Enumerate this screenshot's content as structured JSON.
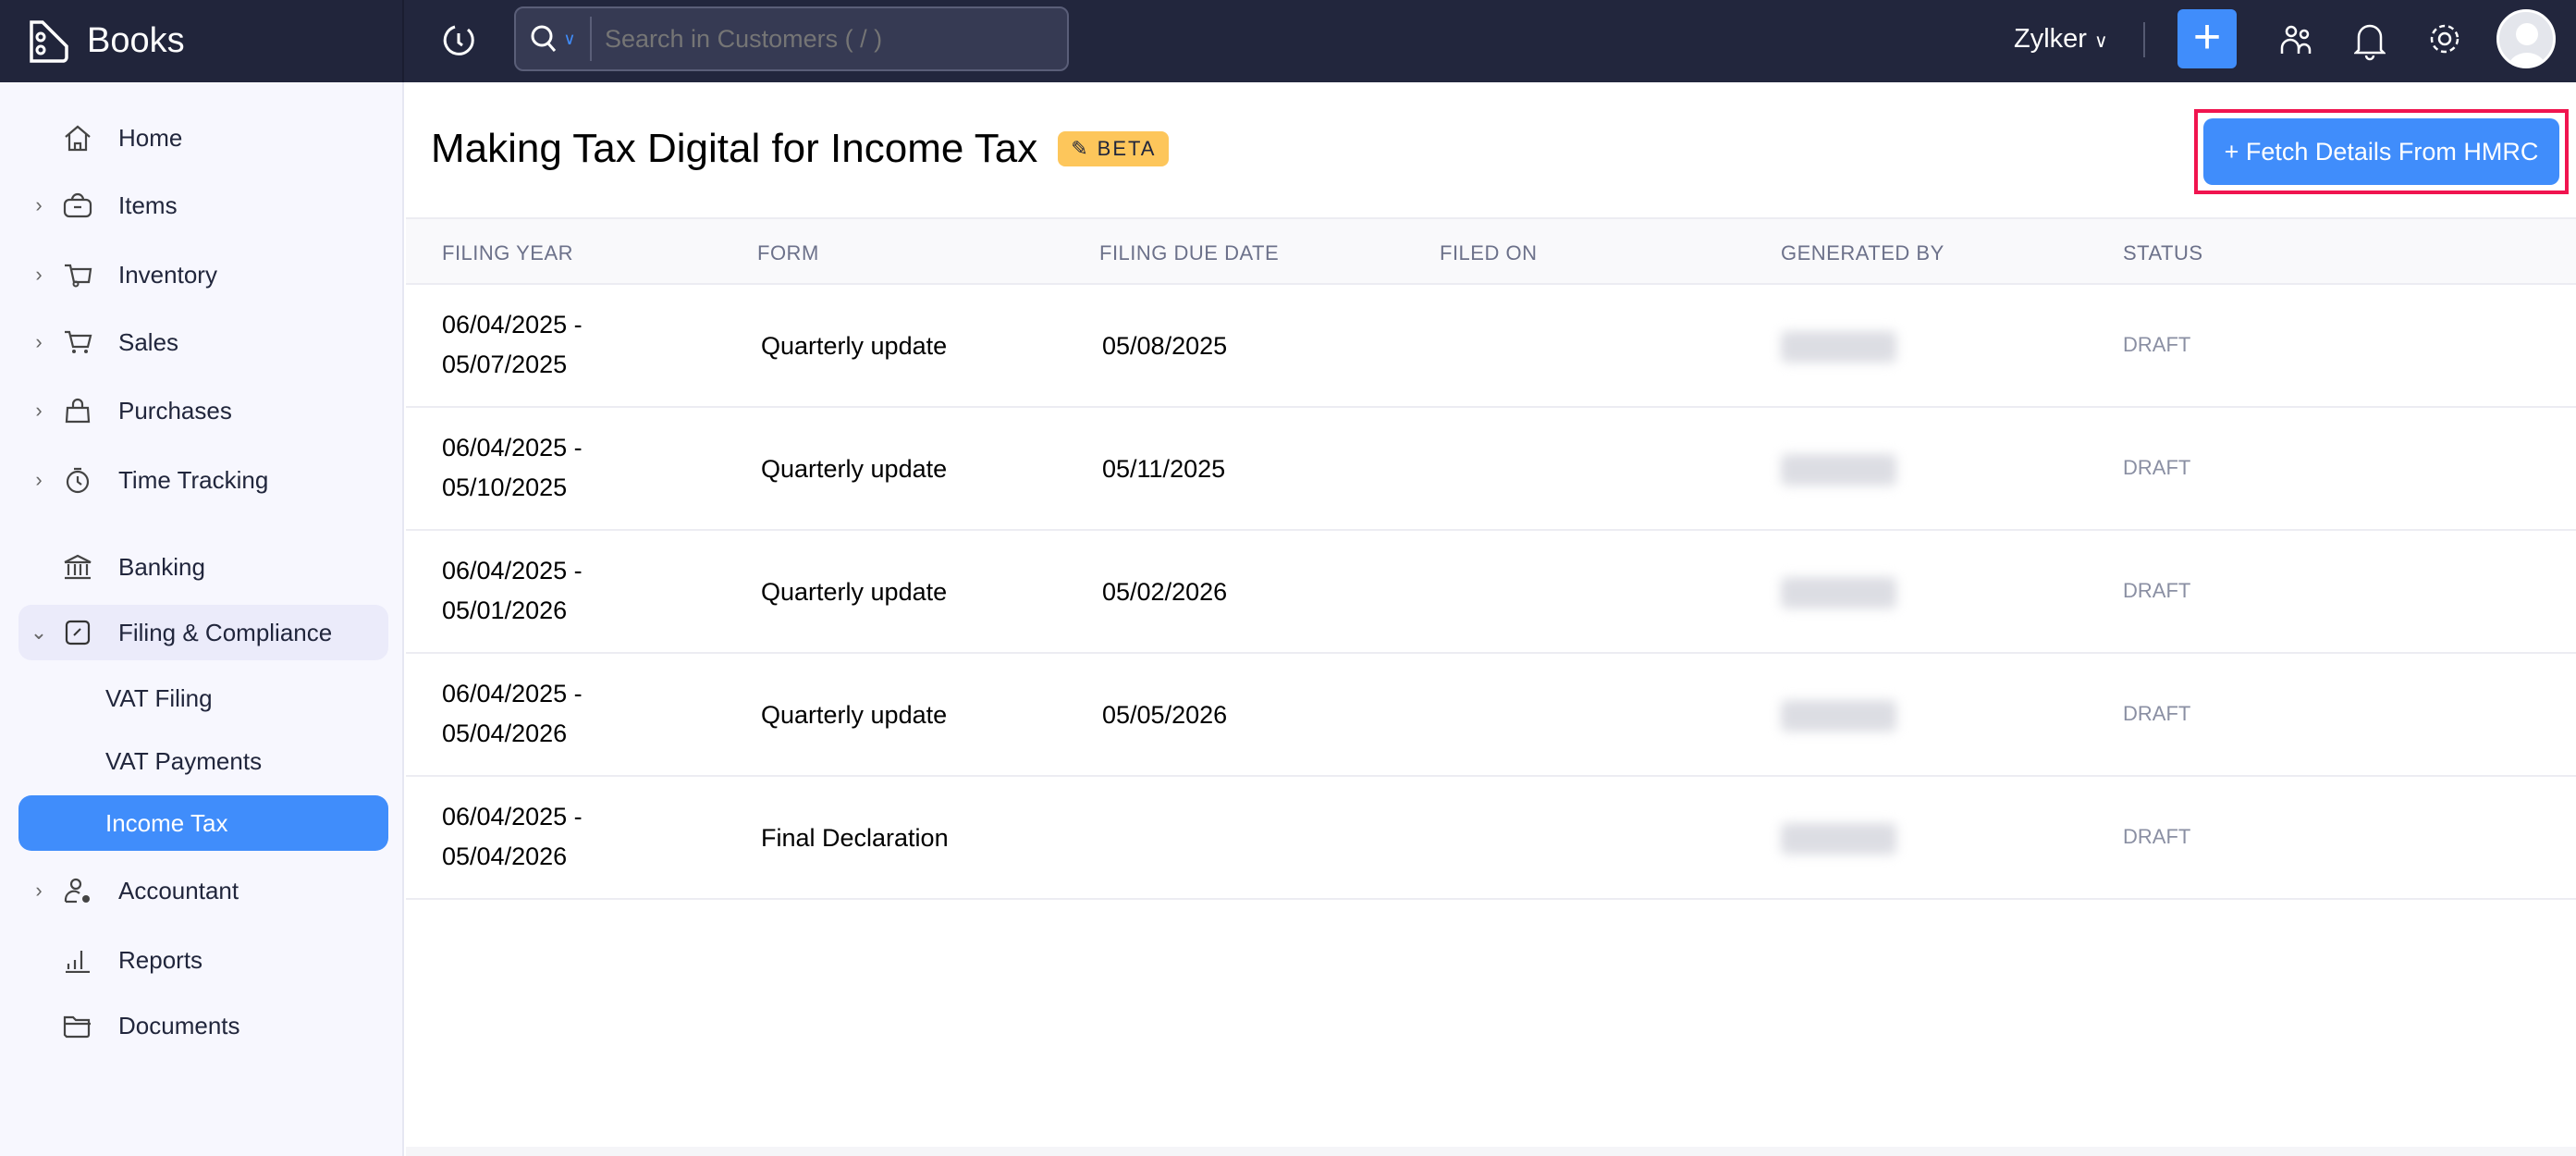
{
  "app": {
    "name": "Books"
  },
  "header": {
    "search_placeholder": "Search in Customers ( / )",
    "org": "Zylker",
    "colors": {
      "topbar": "#22263d",
      "accent": "#408dfb"
    }
  },
  "sidebar": {
    "items": [
      {
        "label": "Home",
        "icon": "home-icon"
      },
      {
        "label": "Items",
        "icon": "basket-icon"
      },
      {
        "label": "Inventory",
        "icon": "inventory-icon"
      },
      {
        "label": "Sales",
        "icon": "cart-icon"
      },
      {
        "label": "Purchases",
        "icon": "bag-icon"
      },
      {
        "label": "Time Tracking",
        "icon": "stopwatch-icon"
      },
      {
        "label": "Banking",
        "icon": "bank-icon"
      },
      {
        "label": "Filing & Compliance",
        "icon": "filing-icon"
      },
      {
        "label": "VAT Filing"
      },
      {
        "label": "VAT Payments"
      },
      {
        "label": "Income Tax"
      },
      {
        "label": "Accountant",
        "icon": "accountant-icon"
      },
      {
        "label": "Reports",
        "icon": "reports-icon"
      },
      {
        "label": "Documents",
        "icon": "folder-icon"
      }
    ],
    "active": "Income Tax"
  },
  "main": {
    "title": "Making Tax Digital for Income Tax",
    "badge": "BETA",
    "fetch_button": "+ Fetch Details From HMRC",
    "columns": [
      "FILING YEAR",
      "FORM",
      "FILING DUE DATE",
      "FILED ON",
      "GENERATED BY",
      "STATUS"
    ],
    "rows": [
      {
        "year1": "06/04/2025 -",
        "year2": "05/07/2025",
        "form": "Quarterly update",
        "due": "05/08/2025",
        "filed": "",
        "status": "DRAFT"
      },
      {
        "year1": "06/04/2025 -",
        "year2": "05/10/2025",
        "form": "Quarterly update",
        "due": "05/11/2025",
        "filed": "",
        "status": "DRAFT"
      },
      {
        "year1": "06/04/2025 -",
        "year2": "05/01/2026",
        "form": "Quarterly update",
        "due": "05/02/2026",
        "filed": "",
        "status": "DRAFT"
      },
      {
        "year1": "06/04/2025 -",
        "year2": "05/04/2026",
        "form": "Quarterly update",
        "due": "05/05/2026",
        "filed": "",
        "status": "DRAFT"
      },
      {
        "year1": "06/04/2025 -",
        "year2": "05/04/2026",
        "form": "Final Declaration",
        "due": "",
        "filed": "",
        "status": "DRAFT"
      }
    ]
  }
}
